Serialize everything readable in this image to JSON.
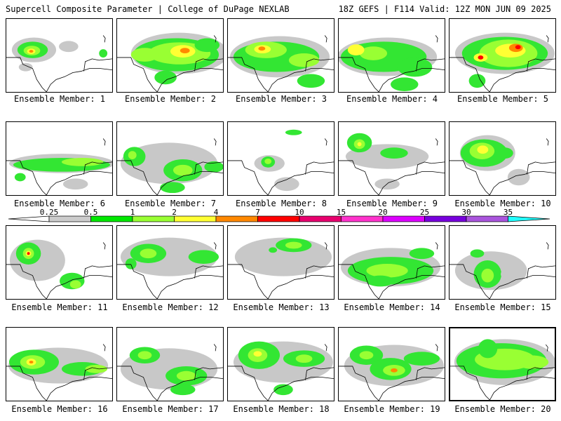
{
  "header": {
    "left": "Supercell Composite Parameter | College of DuPage NEXLAB",
    "right": "18Z GEFS | F114 Valid: 12Z MON JUN 09 2025"
  },
  "panels": [
    {
      "label": "Ensemble Member: 1"
    },
    {
      "label": "Ensemble Member: 2"
    },
    {
      "label": "Ensemble Member: 3"
    },
    {
      "label": "Ensemble Member: 4"
    },
    {
      "label": "Ensemble Member: 5"
    },
    {
      "label": "Ensemble Member: 6"
    },
    {
      "label": "Ensemble Member: 7"
    },
    {
      "label": "Ensemble Member: 8"
    },
    {
      "label": "Ensemble Member: 9"
    },
    {
      "label": "Ensemble Member: 10"
    },
    {
      "label": "Ensemble Member: 11"
    },
    {
      "label": "Ensemble Member: 12"
    },
    {
      "label": "Ensemble Member: 13"
    },
    {
      "label": "Ensemble Member: 14"
    },
    {
      "label": "Ensemble Member: 15"
    },
    {
      "label": "Ensemble Member: 16"
    },
    {
      "label": "Ensemble Member: 17"
    },
    {
      "label": "Ensemble Member: 18"
    },
    {
      "label": "Ensemble Member: 19"
    },
    {
      "label": "Ensemble Member: 20",
      "selected": true
    }
  ],
  "legend": {
    "ticks": [
      "0.25",
      "0.5",
      "1",
      "2",
      "4",
      "7",
      "10",
      "15",
      "20",
      "25",
      "30",
      "35"
    ],
    "colors": [
      "#cccccc",
      "#00e800",
      "#99ff33",
      "#ffff33",
      "#ff8800",
      "#ff0000",
      "#e8006e",
      "#ff33cc",
      "#dd00ff",
      "#7700dd",
      "#aa55dd",
      "#22ffff"
    ]
  },
  "map_colors": {
    "gray": "#c8c8c8",
    "green": "#33e633",
    "light_green": "#99ff33",
    "yellow": "#ffff33",
    "orange": "#ff8800",
    "red": "#ff0000"
  }
}
